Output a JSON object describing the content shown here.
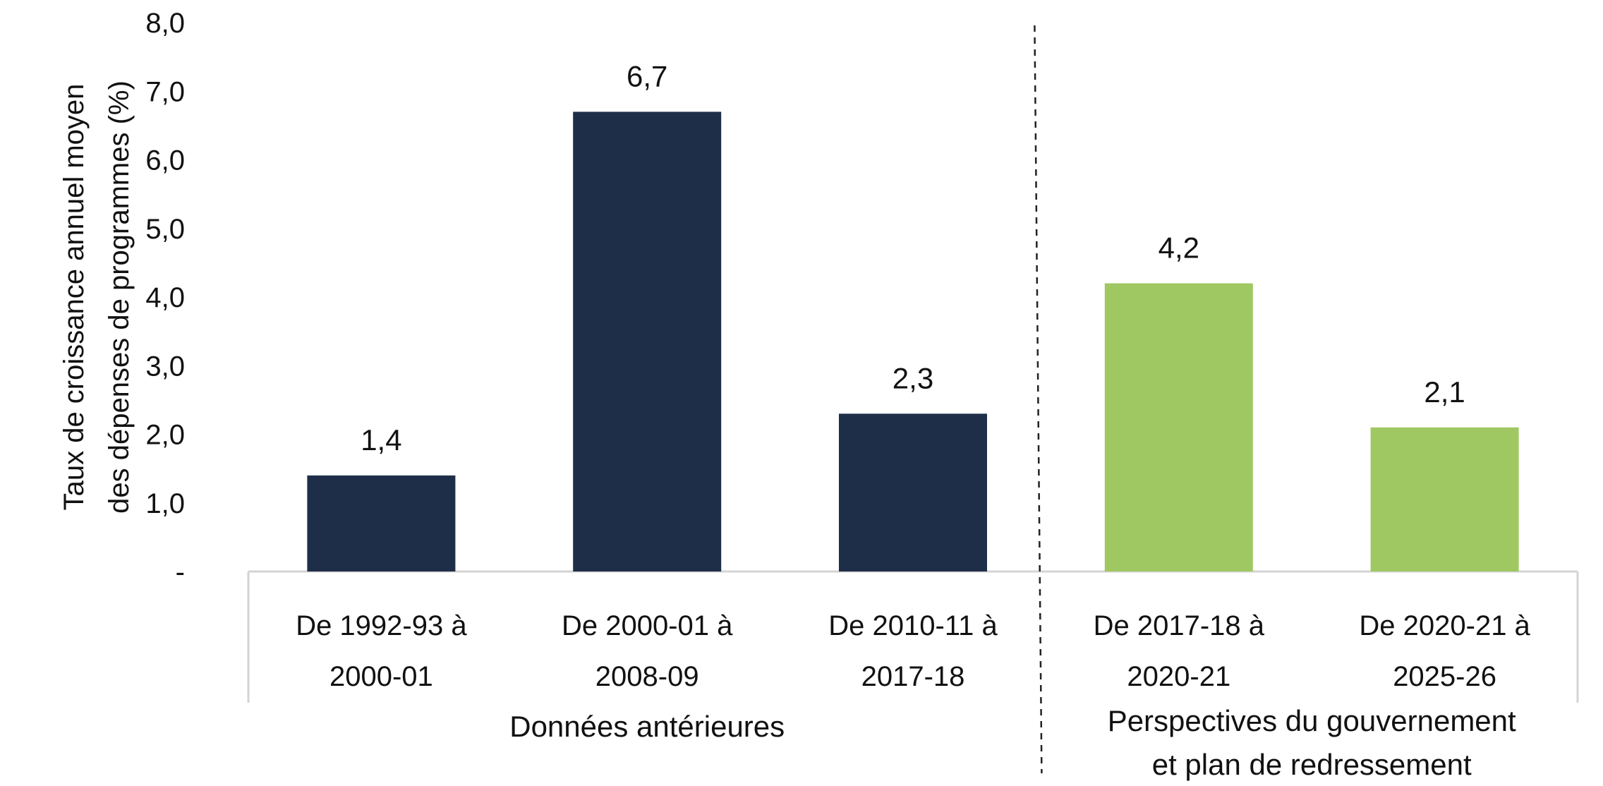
{
  "chart_data": {
    "type": "bar",
    "title": "",
    "xlabel": "",
    "ylabel_lines": [
      "Taux de croissance annuel moyen",
      "des dépenses de programmes (%)"
    ],
    "ylim": [
      0,
      8
    ],
    "yticks": [
      0,
      1,
      2,
      3,
      4,
      5,
      6,
      7,
      8
    ],
    "ytick_labels": [
      "-",
      "1,0",
      "2,0",
      "3,0",
      "4,0",
      "5,0",
      "6,0",
      "7,0",
      "8,0"
    ],
    "grid": false,
    "legend": "none",
    "categories": [
      [
        "De 1992-93  à",
        "2000-01"
      ],
      [
        "De 2000-01  à",
        "2008-09"
      ],
      [
        "De 2010-11  à",
        "2017-18"
      ],
      [
        "De 2017-18  à",
        "2020-21"
      ],
      [
        "De 2020-21  à",
        "2025-26"
      ]
    ],
    "values": [
      1.4,
      6.7,
      2.3,
      4.2,
      2.1
    ],
    "value_labels": [
      "1,4",
      "6,7",
      "2,3",
      "4,2",
      "2,1"
    ],
    "bar_colors": [
      "#1f2e48",
      "#1f2e48",
      "#1f2e48",
      "#a0c862",
      "#a0c862"
    ],
    "groups": [
      {
        "label_lines": [
          "Données antérieures"
        ],
        "categories": [
          0,
          1,
          2
        ]
      },
      {
        "label_lines": [
          "Perspectives du gouvernement",
          "et plan de redressement"
        ],
        "categories": [
          3,
          4
        ]
      }
    ],
    "separator_style": "dashed"
  },
  "colors": {
    "historical": "#1f2e48",
    "projection": "#a0c862",
    "axis": "#d4d4d4",
    "separator": "#222222"
  }
}
